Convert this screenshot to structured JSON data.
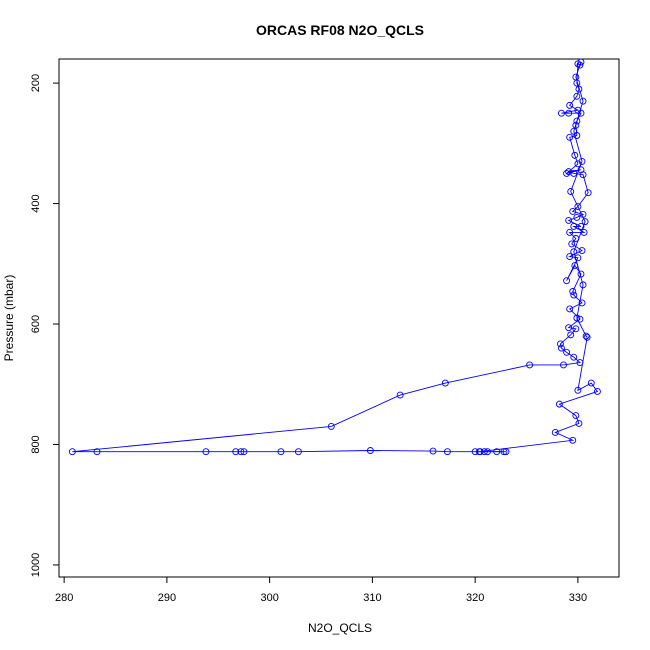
{
  "chart_data": {
    "type": "line",
    "title": "ORCAS RF08 N2O_QCLS",
    "xlabel": "N2O_QCLS",
    "ylabel": "Pressure (mbar)",
    "xlim": [
      279.5,
      334.0
    ],
    "ylim": [
      1020,
      160
    ],
    "y_reversed": true,
    "grid": false,
    "legend": "none",
    "x_ticks": [
      280,
      290,
      300,
      310,
      320,
      330
    ],
    "y_ticks": [
      200,
      400,
      600,
      800,
      1000
    ],
    "series": [
      {
        "color": "#0000ff",
        "marker": "open-circle",
        "points": [
          [
            323.0,
            812
          ],
          [
            322.1,
            812
          ],
          [
            320.9,
            812
          ],
          [
            320.5,
            812
          ],
          [
            320.0,
            812
          ],
          [
            317.3,
            812
          ],
          [
            315.9,
            811
          ],
          [
            309.8,
            810
          ],
          [
            302.8,
            812
          ],
          [
            301.1,
            812
          ],
          [
            297.5,
            812
          ],
          [
            297.2,
            812
          ],
          [
            296.7,
            812
          ],
          [
            293.8,
            812
          ],
          [
            283.2,
            812
          ],
          [
            280.8,
            812
          ],
          [
            306.0,
            770
          ],
          [
            312.7,
            718
          ],
          [
            317.1,
            698
          ],
          [
            325.3,
            668
          ],
          [
            328.6,
            668
          ],
          [
            330.2,
            664
          ],
          [
            329.6,
            655
          ],
          [
            328.9,
            647
          ],
          [
            328.4,
            640
          ],
          [
            328.3,
            633
          ],
          [
            329.3,
            618
          ],
          [
            329.8,
            608
          ],
          [
            329.1,
            606
          ],
          [
            330.2,
            592
          ],
          [
            329.2,
            575
          ],
          [
            330.4,
            565
          ],
          [
            329.6,
            552
          ],
          [
            329.5,
            546
          ],
          [
            330.3,
            517
          ],
          [
            329.7,
            503
          ],
          [
            328.9,
            528
          ],
          [
            330.0,
            490
          ],
          [
            329.2,
            488
          ],
          [
            330.4,
            478
          ],
          [
            329.4,
            467
          ],
          [
            329.8,
            458
          ],
          [
            329.2,
            448
          ],
          [
            330.6,
            448
          ],
          [
            329.6,
            438
          ],
          [
            330.3,
            438
          ],
          [
            329.1,
            428
          ],
          [
            329.9,
            423
          ],
          [
            330.5,
            418
          ],
          [
            329.5,
            413
          ],
          [
            330.0,
            405
          ],
          [
            331.0,
            382
          ],
          [
            330.5,
            352
          ],
          [
            329.6,
            350
          ],
          [
            329.1,
            347
          ],
          [
            330.3,
            344
          ],
          [
            328.9,
            350
          ],
          [
            330.0,
            334
          ],
          [
            329.7,
            320
          ],
          [
            329.2,
            290
          ],
          [
            329.9,
            287
          ],
          [
            329.8,
            270
          ],
          [
            329.9,
            263
          ],
          [
            330.3,
            250
          ],
          [
            329.1,
            250
          ],
          [
            328.4,
            250
          ],
          [
            330.0,
            245
          ],
          [
            329.2,
            237
          ],
          [
            329.9,
            222
          ],
          [
            330.1,
            210
          ],
          [
            329.9,
            200
          ],
          [
            330.0,
            168
          ],
          [
            330.2,
            170
          ]
        ]
      },
      {
        "color": "#0000ff",
        "marker": "open-circle",
        "points": [
          [
            330.3,
            165
          ],
          [
            329.8,
            190
          ],
          [
            330.5,
            230
          ],
          [
            329.6,
            280
          ],
          [
            330.4,
            330
          ],
          [
            329.3,
            380
          ],
          [
            330.7,
            430
          ],
          [
            329.6,
            480
          ],
          [
            330.5,
            535
          ],
          [
            329.9,
            590
          ],
          [
            330.8,
            620
          ],
          [
            330.9,
            622
          ],
          [
            330.0,
            710
          ],
          [
            331.3,
            698
          ],
          [
            331.9,
            712
          ],
          [
            328.2,
            733
          ],
          [
            329.8,
            752
          ],
          [
            330.1,
            765
          ],
          [
            327.8,
            780
          ],
          [
            329.5,
            793
          ],
          [
            320.4,
            812
          ],
          [
            321.2,
            812
          ],
          [
            322.8,
            812
          ]
        ]
      }
    ]
  }
}
